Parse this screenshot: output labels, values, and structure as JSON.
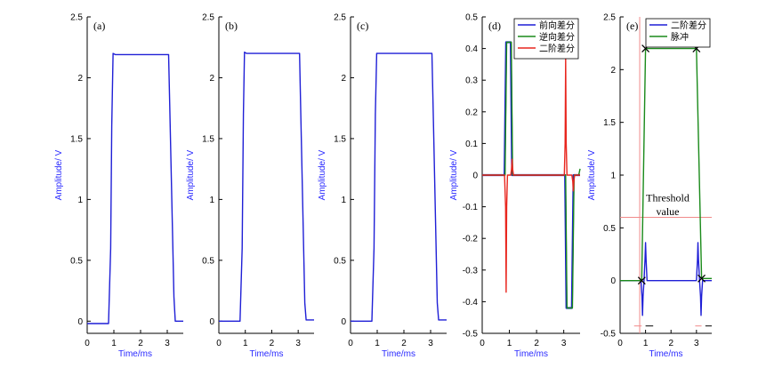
{
  "colors": {
    "blue": "#1f1fd6",
    "green": "#1a8a1a",
    "red": "#e8261e",
    "axis_label": "#2a2aff",
    "threshold_line": "#f08a8a",
    "axis": "#000000"
  },
  "chart_data": [
    {
      "type": "line",
      "panel_label": "(a)",
      "xlabel": "Time/ms",
      "ylabel": "Amplitude/ V",
      "xlim": [
        0,
        3.6
      ],
      "ylim": [
        -0.1,
        2.5
      ],
      "xticks": [
        "0",
        "1",
        "2",
        "3"
      ],
      "yticks": [
        "0",
        "0.5",
        "1",
        "1.5",
        "2",
        "2.5"
      ],
      "grid": false,
      "series": [
        {
          "color": "#1f1fd6",
          "x": [
            0,
            0.8,
            0.88,
            0.92,
            0.97,
            1.05,
            3.05,
            3.09,
            3.25,
            3.3,
            3.55,
            3.6
          ],
          "y": [
            -0.02,
            -0.02,
            0.6,
            1.6,
            2.2,
            2.19,
            2.19,
            1.8,
            0.2,
            0.0,
            0.0,
            0.0
          ]
        }
      ]
    },
    {
      "type": "line",
      "panel_label": "(b)",
      "xlabel": "Time/ms",
      "ylabel": "Amplitude/ V",
      "xlim": [
        0,
        3.6
      ],
      "ylim": [
        -0.1,
        2.5
      ],
      "xticks": [
        "0",
        "1",
        "2",
        "3"
      ],
      "yticks": [
        "0",
        "0.5",
        "1",
        "1.5",
        "2",
        "2.5"
      ],
      "grid": false,
      "series": [
        {
          "color": "#1f1fd6",
          "x": [
            0,
            0.8,
            0.88,
            0.93,
            0.97,
            1.05,
            3.05,
            3.1,
            3.25,
            3.3,
            3.6
          ],
          "y": [
            0.0,
            0.0,
            0.6,
            1.7,
            2.21,
            2.2,
            2.2,
            1.7,
            0.15,
            0.01,
            0.01
          ]
        }
      ]
    },
    {
      "type": "line",
      "panel_label": "(c)",
      "xlabel": "Time/ms",
      "ylabel": "Amplitude/ V",
      "xlim": [
        0,
        3.6
      ],
      "ylim": [
        -0.1,
        2.5
      ],
      "xticks": [
        "0",
        "1",
        "2",
        "3"
      ],
      "yticks": [
        "0",
        "0.5",
        "1",
        "1.5",
        "2",
        "2.5"
      ],
      "grid": false,
      "series": [
        {
          "color": "#1f1fd6",
          "x": [
            0,
            0.8,
            0.88,
            0.93,
            0.98,
            3.05,
            3.1,
            3.25,
            3.3,
            3.6
          ],
          "y": [
            0.0,
            0.0,
            0.6,
            1.7,
            2.2,
            2.2,
            1.7,
            0.15,
            0.01,
            0.01
          ]
        }
      ]
    },
    {
      "type": "line",
      "panel_label": "(d)",
      "xlabel": "Time/ms",
      "ylabel": "Amplitude/ V",
      "xlim": [
        0,
        3.6
      ],
      "ylim": [
        -0.5,
        0.5
      ],
      "xticks": [
        "0",
        "1",
        "2",
        "3"
      ],
      "yticks": [
        "-0.5",
        "-0.4",
        "-0.3",
        "-0.2",
        "-0.1",
        "0",
        "0.1",
        "0.2",
        "0.3",
        "0.4",
        "0.5"
      ],
      "grid": false,
      "legend_position": "top-right",
      "series": [
        {
          "name": "前向差分",
          "color": "#1f1fd6",
          "x": [
            0,
            0.82,
            0.88,
            0.92,
            1.05,
            1.1,
            1.15,
            3.05,
            3.1,
            3.15,
            3.3,
            3.36,
            3.6
          ],
          "y": [
            0,
            0,
            0.42,
            0.42,
            0.42,
            0.0,
            0,
            0,
            -0.42,
            -0.42,
            -0.42,
            0.0,
            0
          ]
        },
        {
          "name": "逆向差分",
          "color": "#1a8a1a",
          "x": [
            0,
            0.84,
            0.9,
            0.94,
            1.07,
            1.12,
            1.18,
            3.07,
            3.12,
            3.17,
            3.32,
            3.38,
            3.55,
            3.6
          ],
          "y": [
            0,
            0,
            0.42,
            0.42,
            0.42,
            0.0,
            0,
            0,
            -0.42,
            -0.42,
            -0.42,
            0.0,
            0.0,
            0.02
          ]
        },
        {
          "name": "二阶差分",
          "color": "#e8261e",
          "x": [
            0,
            0.82,
            0.86,
            0.88,
            0.9,
            0.93,
            1.05,
            1.08,
            1.1,
            1.12,
            1.15,
            3.02,
            3.05,
            3.07,
            3.09,
            3.12,
            3.3,
            3.33,
            3.35,
            3.37,
            3.4,
            3.6
          ],
          "y": [
            0,
            0,
            -0.1,
            -0.37,
            -0.1,
            0,
            0,
            0.02,
            0.05,
            0.02,
            0,
            0,
            0.1,
            0.37,
            0.1,
            0,
            0,
            -0.02,
            -0.05,
            -0.02,
            0,
            0
          ]
        }
      ]
    },
    {
      "type": "line",
      "panel_label": "(e)",
      "xlabel": "Time/ms",
      "ylabel": "Amplitude/ V",
      "xlim": [
        0,
        3.6
      ],
      "ylim": [
        -0.5,
        2.5
      ],
      "xticks": [
        "0",
        "1",
        "2",
        "3"
      ],
      "yticks": [
        "-0.5",
        "0",
        "0.5",
        "1",
        "1.5",
        "2",
        "2.5"
      ],
      "grid": false,
      "legend_position": "top-right",
      "annotations": [
        "Threshold",
        "value"
      ],
      "threshold_y": 0.6,
      "marker_line_x": 0.77,
      "crosses": [
        {
          "x": 0.85,
          "y": 0.0
        },
        {
          "x": 1.0,
          "y": 2.2
        },
        {
          "x": 3.0,
          "y": 2.2
        },
        {
          "x": 3.2,
          "y": 0.02
        }
      ],
      "series": [
        {
          "name": "二阶差分",
          "color": "#1f1fd6",
          "x": [
            0,
            0.82,
            0.86,
            0.88,
            0.9,
            0.94,
            0.98,
            1.0,
            1.02,
            1.06,
            3.0,
            3.04,
            3.06,
            3.08,
            3.12,
            3.16,
            3.18,
            3.2,
            3.24,
            3.6
          ],
          "y": [
            0,
            0,
            -0.15,
            -0.33,
            -0.15,
            0,
            0.2,
            0.36,
            0.2,
            0,
            0,
            0.2,
            0.36,
            0.2,
            0,
            -0.15,
            -0.33,
            -0.15,
            0,
            0
          ]
        },
        {
          "name": "脉冲",
          "color": "#1a8a1a",
          "x": [
            0,
            0.85,
            1.0,
            3.0,
            3.2,
            3.6
          ],
          "y": [
            0,
            0,
            2.2,
            2.2,
            0.02,
            0.02
          ]
        }
      ]
    }
  ]
}
